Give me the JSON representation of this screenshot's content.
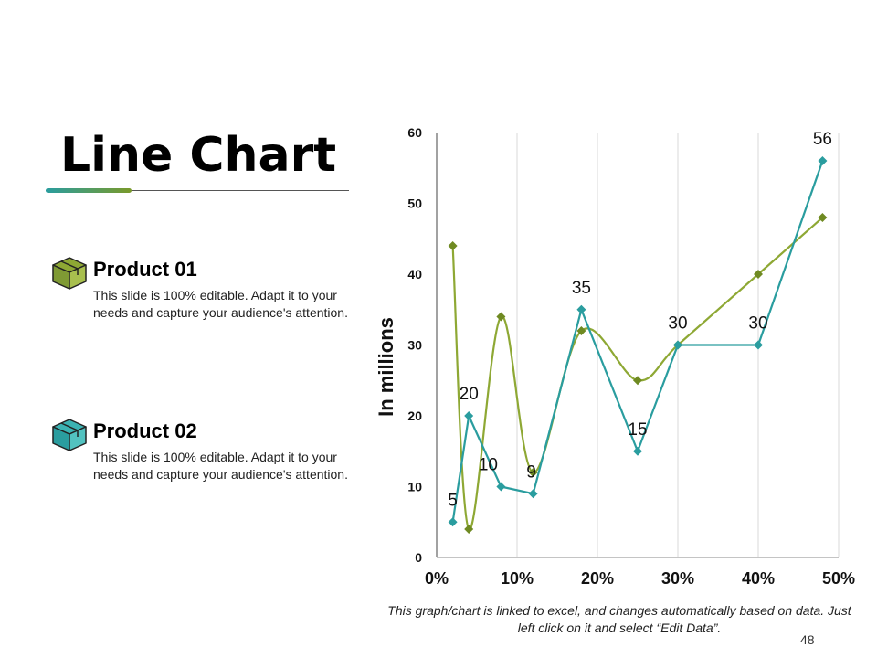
{
  "slide": {
    "title": "Line Chart",
    "caption": "This graph/chart is linked to excel, and changes automatically based on data. Just left click on it and select “Edit Data”.",
    "page_number": "48"
  },
  "products": [
    {
      "name": "Product 01",
      "description": "This slide is 100% editable. Adapt it to your needs and capture your audience's attention.",
      "icon": "box-icon",
      "color": "#7f9a34"
    },
    {
      "name": "Product 02",
      "description": "This slide is 100% editable. Adapt it to your needs and capture your audience's attention.",
      "icon": "box-icon",
      "color": "#2a9d9f"
    }
  ],
  "chart_data": {
    "type": "scatter",
    "title": "",
    "xlabel": "",
    "ylabel": "In millions",
    "xlim": [
      0,
      50
    ],
    "ylim": [
      0,
      60
    ],
    "x_ticks": [
      "0%",
      "10%",
      "20%",
      "30%",
      "40%",
      "50%"
    ],
    "y_ticks": [
      "0",
      "10",
      "20",
      "30",
      "40",
      "50",
      "60"
    ],
    "grid": "vertical",
    "series": [
      {
        "color": "#2a9d9f",
        "smooth": false,
        "points": [
          [
            2,
            5
          ],
          [
            4,
            20
          ],
          [
            8,
            10
          ],
          [
            12,
            9
          ],
          [
            18,
            35
          ],
          [
            25,
            15
          ],
          [
            30,
            30
          ],
          [
            40,
            30
          ],
          [
            48,
            56
          ]
        ],
        "labels": [
          "5",
          "20",
          "10",
          "9",
          "35",
          "15",
          "30",
          "30",
          "56"
        ]
      },
      {
        "color": "#8ea834",
        "marker_color": "#6f8a22",
        "smooth": true,
        "points": [
          [
            2,
            44
          ],
          [
            4,
            4
          ],
          [
            8,
            34
          ],
          [
            12,
            12
          ],
          [
            18,
            32
          ],
          [
            25,
            25
          ],
          [
            30,
            30
          ],
          [
            40,
            40
          ],
          [
            48,
            48
          ]
        ]
      }
    ]
  }
}
